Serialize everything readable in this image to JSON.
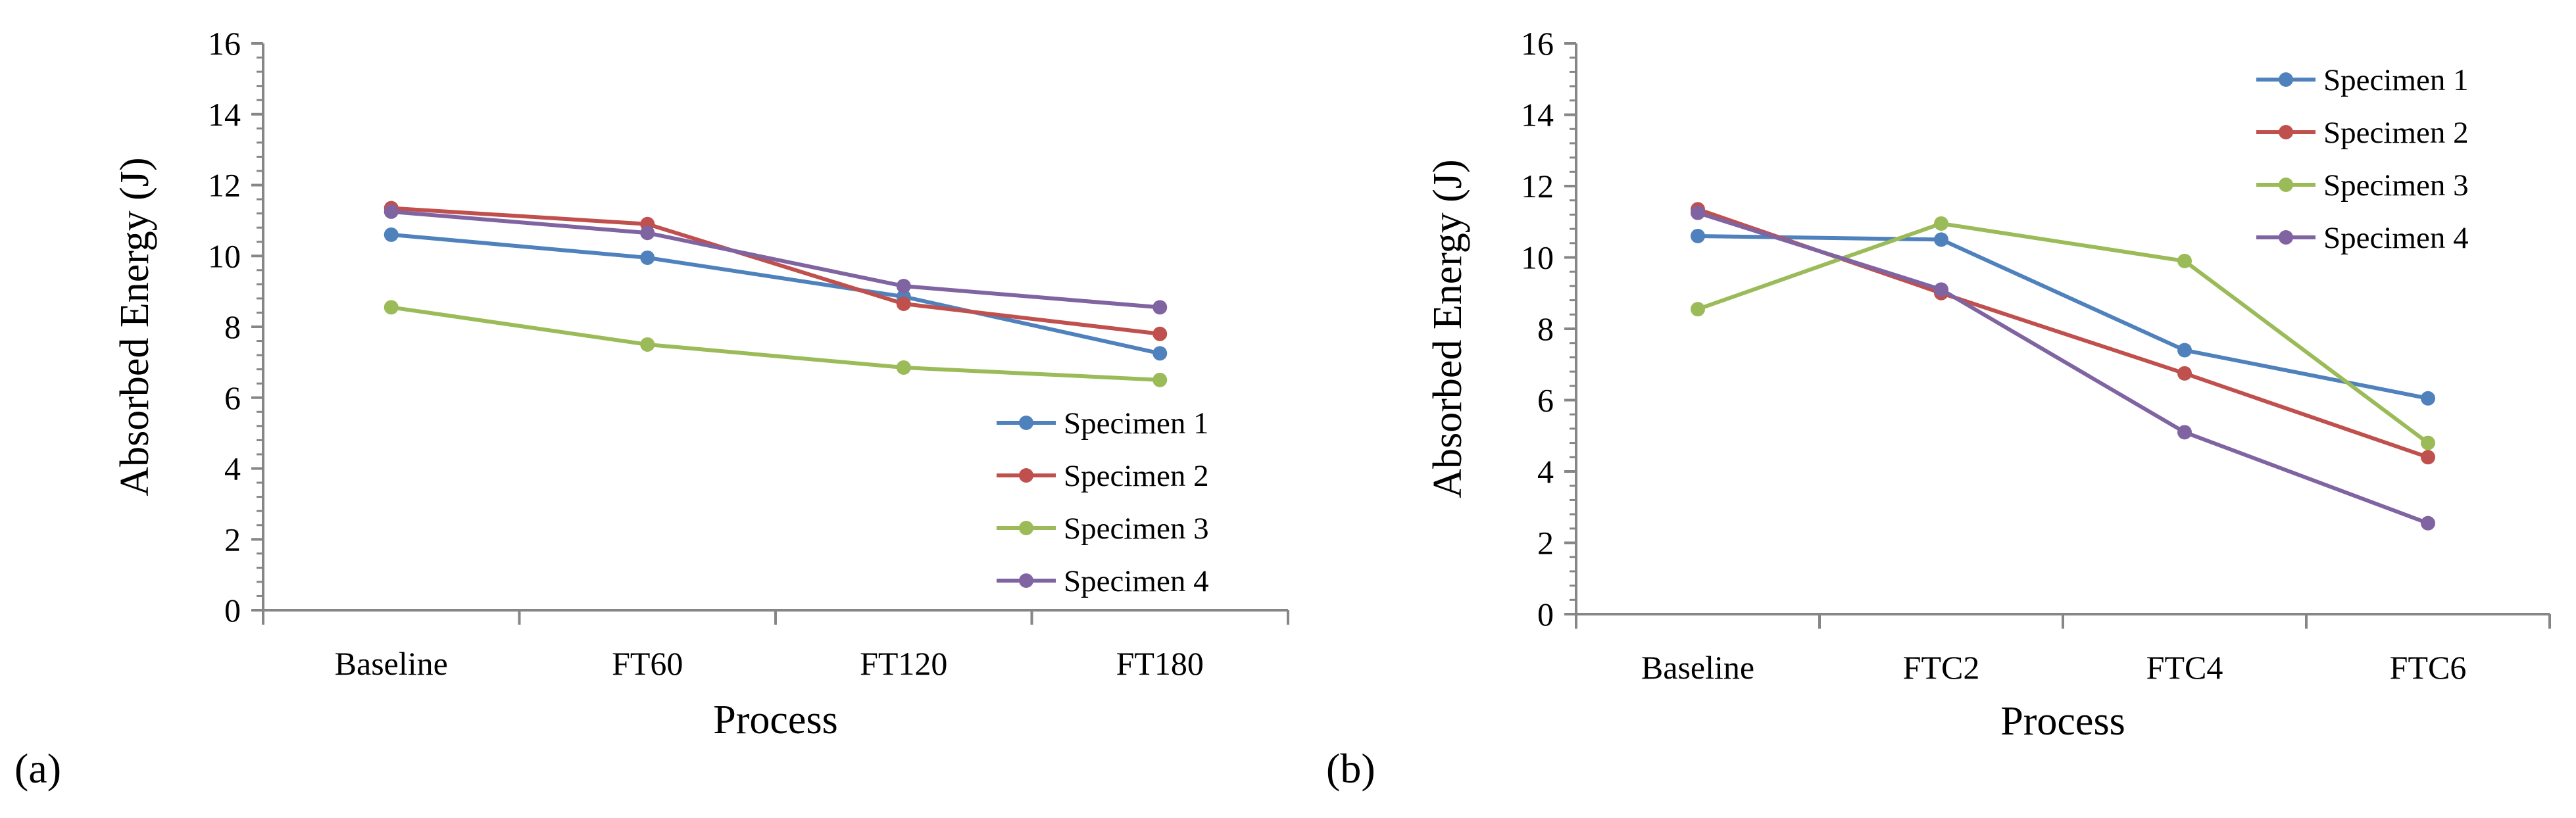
{
  "figure": {
    "panels": [
      {
        "label": "(a)"
      },
      {
        "label": "(b)"
      }
    ]
  },
  "chart_data": [
    {
      "type": "line",
      "panel": "(a)",
      "xlabel": "Process",
      "ylabel": "Absorbed Energy (J)",
      "ylim": [
        0,
        16
      ],
      "yticks": [
        0,
        2,
        4,
        6,
        8,
        10,
        12,
        14,
        16
      ],
      "categories": [
        "Baseline",
        "FT60",
        "FT120",
        "FT180"
      ],
      "grid": false,
      "legend_position": "bottom-right",
      "series": [
        {
          "name": "Specimen 1",
          "color": "#4f81bd",
          "values": [
            10.6,
            9.95,
            8.85,
            7.25
          ]
        },
        {
          "name": "Specimen 2",
          "color": "#c0504d",
          "values": [
            11.35,
            10.9,
            8.65,
            7.8
          ]
        },
        {
          "name": "Specimen 3",
          "color": "#9bbb59",
          "values": [
            8.55,
            7.5,
            6.85,
            6.5
          ]
        },
        {
          "name": "Specimen 4",
          "color": "#8064a2",
          "values": [
            11.25,
            10.65,
            9.15,
            8.55
          ]
        }
      ]
    },
    {
      "type": "line",
      "panel": "(b)",
      "xlabel": "Process",
      "ylabel": "Absorbed Energy (J)",
      "ylim": [
        0,
        16
      ],
      "yticks": [
        0,
        2,
        4,
        6,
        8,
        10,
        12,
        14,
        16
      ],
      "categories": [
        "Baseline",
        "FTC2",
        "FTC4",
        "FTC6"
      ],
      "grid": false,
      "legend_position": "top-right",
      "series": [
        {
          "name": "Specimen 1",
          "color": "#4f81bd",
          "values": [
            10.6,
            10.5,
            7.4,
            6.05
          ]
        },
        {
          "name": "Specimen 2",
          "color": "#c0504d",
          "values": [
            11.35,
            9.0,
            6.75,
            4.4
          ]
        },
        {
          "name": "Specimen 3",
          "color": "#9bbb59",
          "values": [
            8.55,
            10.95,
            9.9,
            4.8
          ]
        },
        {
          "name": "Specimen 4",
          "color": "#8064a2",
          "values": [
            11.25,
            9.1,
            5.1,
            2.55
          ]
        }
      ]
    }
  ]
}
